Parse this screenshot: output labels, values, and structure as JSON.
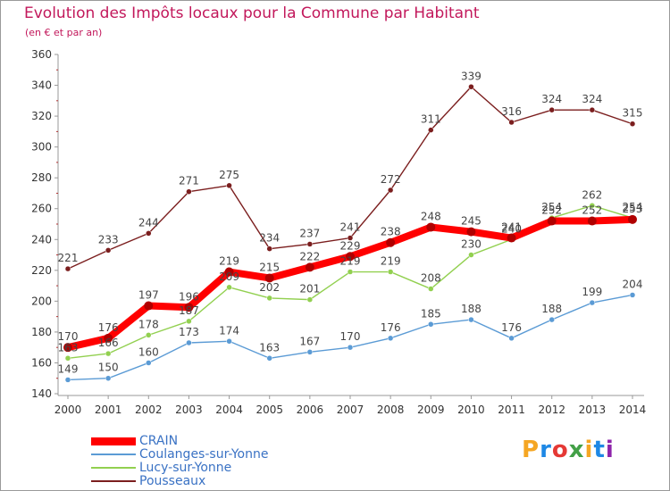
{
  "header": {
    "title": "Evolution des Impôts locaux pour la Commune par Habitant",
    "subtitle": "(en € et par an)"
  },
  "logo": {
    "text": "Proxiti",
    "colors": [
      "#f5a623",
      "#1e88e5",
      "#e53935",
      "#43a047",
      "#f5a623",
      "#1e88e5",
      "#8e24aa"
    ]
  },
  "chart_data": {
    "type": "line",
    "title": "Evolution des Impôts locaux pour la Commune par Habitant",
    "subtitle": "(en € et par an)",
    "x": [
      "2000",
      "2001",
      "2002",
      "2003",
      "2004",
      "2005",
      "2006",
      "2007",
      "2008",
      "2009",
      "2010",
      "2011",
      "2012",
      "2013",
      "2014"
    ],
    "ylim": [
      140,
      360
    ],
    "yticks": [
      140,
      160,
      180,
      200,
      220,
      240,
      260,
      280,
      300,
      320,
      340,
      360
    ],
    "grid": false,
    "legend_position": "bottom-left",
    "series": [
      {
        "name": "Pousseaux",
        "color": "#7b1e1e",
        "values": [
          221,
          233,
          244,
          271,
          275,
          234,
          237,
          241,
          272,
          311,
          339,
          316,
          324,
          324,
          315
        ]
      },
      {
        "name": "Coulanges-sur-Yonne",
        "color": "#5b9bd5",
        "values": [
          149,
          150,
          160,
          173,
          174,
          163,
          167,
          170,
          176,
          185,
          188,
          176,
          188,
          199,
          204
        ]
      },
      {
        "name": "Lucy-sur-Yonne",
        "color": "#92d050",
        "values": [
          163,
          166,
          178,
          187,
          209,
          202,
          201,
          219,
          219,
          208,
          230,
          240,
          254,
          262,
          254
        ]
      },
      {
        "name": "CRAIN",
        "color": "#ff0000",
        "values": [
          170,
          176,
          197,
          196,
          219,
          215,
          222,
          229,
          238,
          248,
          245,
          241,
          252,
          252,
          253
        ]
      }
    ],
    "labels": [
      {
        "series": "Pousseaux",
        "texts": [
          "221",
          "233",
          "244",
          "271",
          "275",
          "234",
          "237",
          "241",
          "272",
          "311",
          "339",
          "316",
          "324",
          "324",
          "315"
        ]
      },
      {
        "series": "Coulanges-sur-Yonne",
        "texts": [
          "149",
          "150",
          "160",
          "173",
          "174",
          "163",
          "167",
          "170",
          "176",
          "185",
          "188",
          "176",
          "188",
          "199",
          "204"
        ]
      },
      {
        "series": "Lucy-sur-Yonne",
        "texts": [
          "163",
          "166",
          "178",
          "187",
          "209",
          "202",
          "201",
          "219",
          "219",
          "208",
          "230",
          "240",
          "254",
          "262",
          "254"
        ]
      },
      {
        "series": "CRAIN",
        "texts": [
          "170",
          "176",
          "197",
          "196",
          "219",
          "215",
          "222",
          "229",
          "238",
          "248",
          "245",
          "241",
          "252",
          "252",
          "253"
        ]
      }
    ]
  },
  "legend": [
    {
      "name": "CRAIN",
      "color": "#ff0000"
    },
    {
      "name": "Coulanges-sur-Yonne",
      "color": "#5b9bd5"
    },
    {
      "name": "Lucy-sur-Yonne",
      "color": "#92d050"
    },
    {
      "name": "Pousseaux",
      "color": "#7b1e1e"
    }
  ]
}
